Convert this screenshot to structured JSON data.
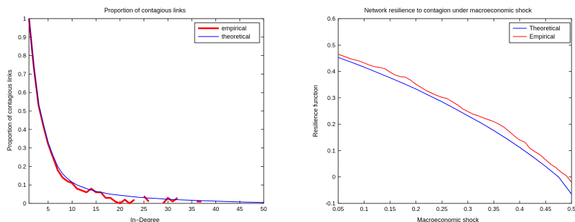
{
  "chart_data": [
    {
      "type": "line",
      "title": "Proportion of contagious links",
      "xlabel": "In−Degree",
      "ylabel": "Proportion of contagious links",
      "xlim": [
        1,
        50
      ],
      "ylim": [
        0,
        1
      ],
      "xticks": [
        5,
        10,
        15,
        20,
        25,
        30,
        35,
        40,
        45,
        50
      ],
      "yticks": [
        0,
        0.1,
        0.2,
        0.3,
        0.4,
        0.5,
        0.6,
        0.7,
        0.8,
        0.9,
        1
      ],
      "grid": false,
      "legend": "top-right",
      "series": [
        {
          "name": "empirical",
          "color": "#ff0000",
          "segments": [
            [
              [
                1,
                1.0
              ],
              [
                2,
                0.74
              ],
              [
                3,
                0.53
              ],
              [
                4,
                0.42
              ],
              [
                5,
                0.32
              ],
              [
                6,
                0.25
              ],
              [
                7,
                0.18
              ],
              [
                8,
                0.14
              ],
              [
                9,
                0.12
              ],
              [
                10,
                0.11
              ],
              [
                11,
                0.08
              ],
              [
                12,
                0.07
              ],
              [
                13,
                0.06
              ],
              [
                14,
                0.08
              ],
              [
                15,
                0.06
              ],
              [
                16,
                0.06
              ],
              [
                17,
                0.03
              ],
              [
                18,
                0.03
              ],
              [
                19,
                0.01
              ],
              [
                20,
                0.0
              ],
              [
                21,
                0.02
              ],
              [
                22,
                0.0
              ],
              [
                23,
                0.02
              ]
            ],
            [
              [
                25,
                0.04
              ],
              [
                26,
                0.01
              ]
            ],
            [
              [
                29,
                0.0
              ],
              [
                30,
                0.03
              ],
              [
                31,
                0.01
              ],
              [
                32,
                0.03
              ]
            ],
            [
              [
                36,
                0.01
              ],
              [
                37,
                0.01
              ]
            ]
          ]
        },
        {
          "name": "theoretical",
          "color": "#0000ff",
          "x": [
            1,
            2,
            3,
            4,
            5,
            6,
            7,
            8,
            9,
            10,
            11,
            12,
            13,
            14,
            15,
            16,
            17,
            18,
            19,
            20,
            22,
            24,
            26,
            28,
            30,
            32,
            34,
            36,
            38,
            40,
            42,
            44,
            46,
            48,
            50
          ],
          "values": [
            1.0,
            0.74,
            0.54,
            0.43,
            0.33,
            0.26,
            0.2,
            0.16,
            0.135,
            0.115,
            0.1,
            0.09,
            0.08,
            0.072,
            0.065,
            0.06,
            0.055,
            0.05,
            0.047,
            0.044,
            0.038,
            0.033,
            0.029,
            0.026,
            0.022,
            0.02,
            0.018,
            0.016,
            0.014,
            0.012,
            0.01,
            0.009,
            0.007,
            0.006,
            0.005
          ]
        }
      ]
    },
    {
      "type": "line",
      "title": "Network resilience to contagion under macroeconomic shock",
      "xlabel": "Macroeconomic shock",
      "ylabel": "Resilience function",
      "xlim": [
        0.05,
        0.5
      ],
      "ylim": [
        -0.1,
        0.6
      ],
      "xticks": [
        0.05,
        0.1,
        0.15,
        0.2,
        0.25,
        0.3,
        0.35,
        0.4,
        0.45,
        0.5
      ],
      "yticks": [
        -0.1,
        0,
        0.1,
        0.2,
        0.3,
        0.4,
        0.5,
        0.6
      ],
      "grid": false,
      "legend": "top-right",
      "series": [
        {
          "name": "Theoretical",
          "color": "#0000ff",
          "x": [
            0.05,
            0.075,
            0.1,
            0.125,
            0.15,
            0.175,
            0.2,
            0.225,
            0.25,
            0.275,
            0.3,
            0.325,
            0.35,
            0.375,
            0.4,
            0.425,
            0.45,
            0.475,
            0.5
          ],
          "values": [
            0.453,
            0.435,
            0.416,
            0.396,
            0.376,
            0.355,
            0.333,
            0.309,
            0.285,
            0.259,
            0.232,
            0.205,
            0.176,
            0.145,
            0.112,
            0.077,
            0.04,
            0.0,
            -0.065
          ]
        },
        {
          "name": "Empirical",
          "color": "#ff0000",
          "x": [
            0.05,
            0.06,
            0.075,
            0.09,
            0.1,
            0.11,
            0.12,
            0.13,
            0.14,
            0.15,
            0.16,
            0.17,
            0.18,
            0.19,
            0.2,
            0.21,
            0.22,
            0.23,
            0.24,
            0.25,
            0.26,
            0.27,
            0.28,
            0.29,
            0.3,
            0.31,
            0.32,
            0.33,
            0.34,
            0.35,
            0.36,
            0.37,
            0.38,
            0.39,
            0.4,
            0.41,
            0.42,
            0.43,
            0.44,
            0.45,
            0.46,
            0.47,
            0.48,
            0.49,
            0.5
          ],
          "values": [
            0.465,
            0.458,
            0.447,
            0.44,
            0.432,
            0.424,
            0.418,
            0.415,
            0.41,
            0.397,
            0.386,
            0.38,
            0.378,
            0.366,
            0.351,
            0.339,
            0.327,
            0.318,
            0.309,
            0.302,
            0.297,
            0.285,
            0.273,
            0.258,
            0.248,
            0.238,
            0.232,
            0.224,
            0.217,
            0.21,
            0.2,
            0.188,
            0.172,
            0.155,
            0.14,
            0.132,
            0.108,
            0.095,
            0.083,
            0.065,
            0.048,
            0.035,
            0.018,
            0.005,
            -0.02
          ]
        }
      ]
    }
  ]
}
